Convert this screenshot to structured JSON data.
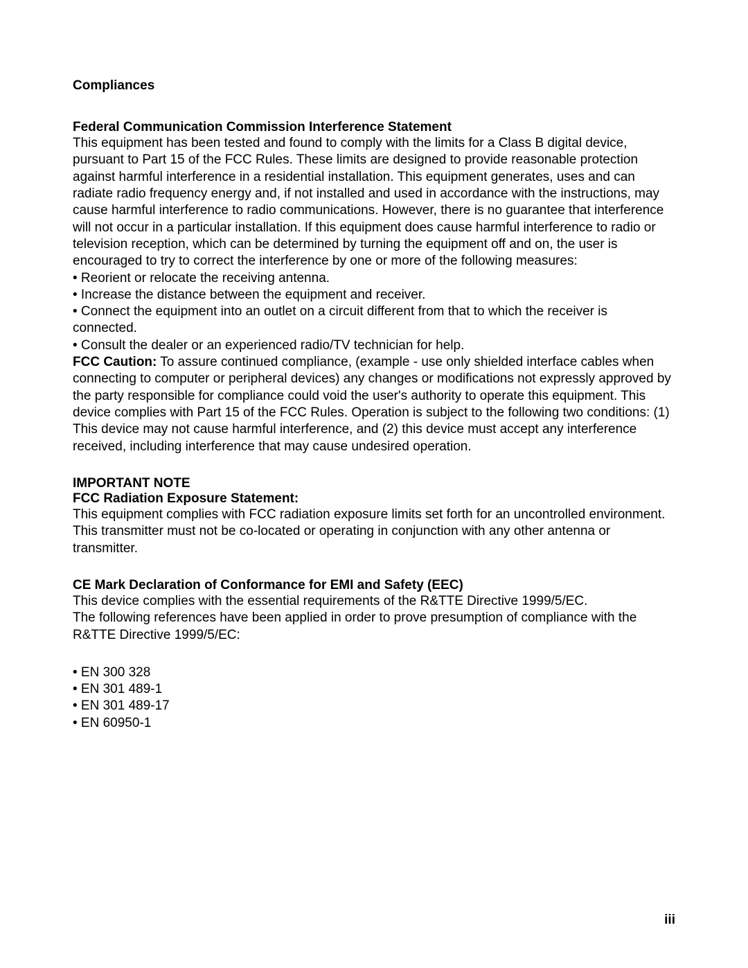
{
  "compliances": {
    "title": "Compliances",
    "fcc": {
      "heading": "Federal Communication Commission Interference Statement",
      "intro": "This equipment has been tested and found to comply with the limits for a Class B digital device, pursuant to Part 15 of the FCC Rules. These limits are designed to provide reasonable protection against harmful interference in a residential installation. This equipment generates, uses and can radiate radio frequency energy and, if not installed and used in accordance with the instructions, may cause harmful interference to radio communications. However, there is no guarantee that interference will not occur in a particular installation. If this equipment does cause harmful interference to radio or television reception, which can be determined by turning the equipment off and on, the user is encouraged to try to correct the interference by one or more of the following measures:",
      "bullets": [
        "• Reorient or relocate the receiving antenna.",
        "• Increase the distance between the equipment and receiver.",
        "• Connect the equipment into an outlet on a circuit different from that to which the receiver is connected.",
        "• Consult the dealer or an experienced radio/TV technician for help."
      ],
      "caution_label": "FCC Caution:",
      "caution_text": " To assure continued compliance, (example - use only shielded interface cables when connecting to computer or peripheral devices) any changes or modifications not expressly approved by the party responsible for compliance could void the user's authority to operate this equipment. This device complies with Part 15 of the FCC Rules. Operation is subject to the following two conditions: (1) This device may not cause harmful interference, and (2) this device must accept any interference received, including interference that may cause undesired operation."
    },
    "important_note": {
      "heading": "IMPORTANT NOTE",
      "subheading": "FCC Radiation Exposure Statement:",
      "body": "This equipment complies with FCC radiation exposure limits set forth for an uncontrolled environment. This transmitter must not be co-located or operating in conjunction with any other antenna or transmitter."
    },
    "ce": {
      "heading": "CE Mark Declaration of Conformance for EMI and Safety (EEC)",
      "line1": "This device complies with the essential requirements of the R&TTE Directive 1999/5/EC.",
      "line2": "The following references have been applied in order to prove presumption of compliance with the R&TTE Directive 1999/5/EC:",
      "bullets": [
        "• EN 300 328",
        "• EN 301 489-1",
        "• EN 301 489-17",
        "• EN 60950-1"
      ]
    }
  },
  "page_number": "iii"
}
